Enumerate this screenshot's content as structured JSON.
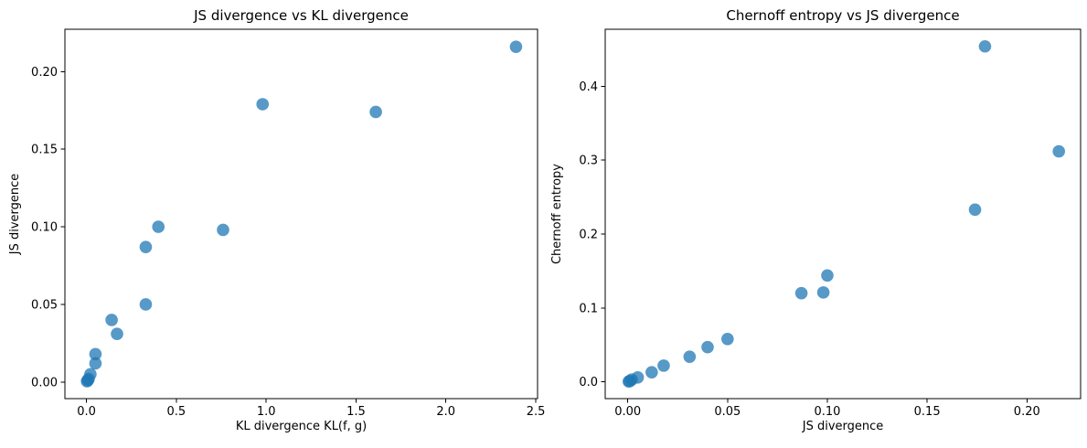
{
  "figure": {
    "background": "#ffffff"
  },
  "style": {
    "marker_color": "#1f77b4",
    "marker_opacity": 0.75,
    "marker_radius": 6.8,
    "axis_color": "#000000",
    "text_color": "#000000"
  },
  "chart_data": [
    {
      "type": "scatter",
      "title": "JS divergence vs KL divergence",
      "xlabel": "KL divergence KL(f, g)",
      "ylabel": "JS divergence",
      "xlim": [
        -0.12,
        2.51
      ],
      "ylim": [
        -0.0107,
        0.2273
      ],
      "xticks": [
        0.0,
        0.5,
        1.0,
        1.5,
        2.0,
        2.5
      ],
      "xtick_labels": [
        "0.0",
        "0.5",
        "1.0",
        "1.5",
        "2.0",
        "2.5"
      ],
      "yticks": [
        0.0,
        0.05,
        0.1,
        0.15,
        0.2
      ],
      "ytick_labels": [
        "0.00",
        "0.05",
        "0.10",
        "0.15",
        "0.20"
      ],
      "grid": false,
      "legend": null,
      "points": [
        [
          2.39,
          0.216
        ],
        [
          0.98,
          0.179
        ],
        [
          1.61,
          0.174
        ],
        [
          0.4,
          0.1
        ],
        [
          0.76,
          0.098
        ],
        [
          0.33,
          0.087
        ],
        [
          0.33,
          0.05
        ],
        [
          0.14,
          0.04
        ],
        [
          0.17,
          0.031
        ],
        [
          0.05,
          0.018
        ],
        [
          0.05,
          0.012
        ],
        [
          0.022,
          0.005
        ],
        [
          0.012,
          0.002
        ],
        [
          0.007,
          0.001
        ],
        [
          0.003,
          0.0005
        ]
      ]
    },
    {
      "type": "scatter",
      "title": "Chernoff entropy vs JS divergence",
      "xlabel": "JS divergence",
      "ylabel": "Chernoff entropy",
      "xlim": [
        -0.0113,
        0.2269
      ],
      "ylim": [
        -0.0227,
        0.4772
      ],
      "xticks": [
        0.0,
        0.05,
        0.1,
        0.15,
        0.2
      ],
      "xtick_labels": [
        "0.00",
        "0.05",
        "0.10",
        "0.15",
        "0.20"
      ],
      "yticks": [
        0.0,
        0.1,
        0.2,
        0.3,
        0.4
      ],
      "ytick_labels": [
        "0.0",
        "0.1",
        "0.2",
        "0.3",
        "0.4"
      ],
      "grid": false,
      "legend": null,
      "points": [
        [
          0.216,
          0.312
        ],
        [
          0.179,
          0.454
        ],
        [
          0.174,
          0.233
        ],
        [
          0.1,
          0.144
        ],
        [
          0.098,
          0.121
        ],
        [
          0.087,
          0.12
        ],
        [
          0.05,
          0.058
        ],
        [
          0.04,
          0.047
        ],
        [
          0.031,
          0.034
        ],
        [
          0.018,
          0.022
        ],
        [
          0.012,
          0.013
        ],
        [
          0.005,
          0.006
        ],
        [
          0.002,
          0.003
        ],
        [
          0.001,
          0.001
        ],
        [
          0.0005,
          0.0005
        ]
      ]
    }
  ]
}
